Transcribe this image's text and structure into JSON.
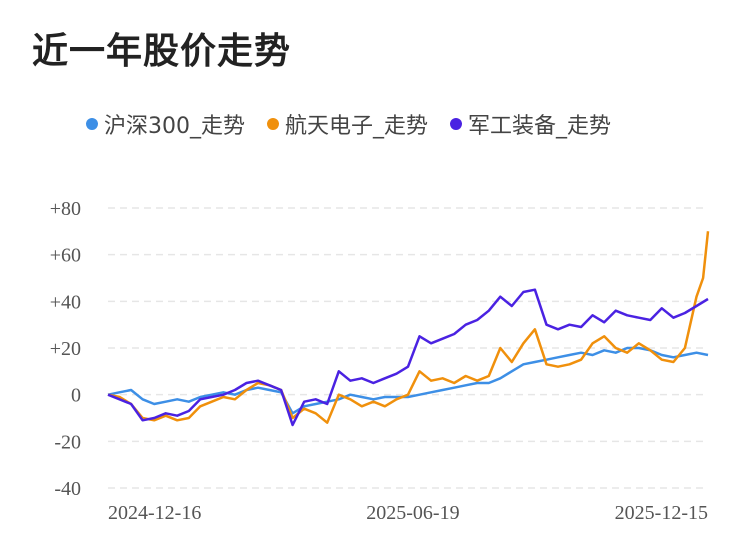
{
  "title": "近一年股价走势",
  "chart_data": {
    "type": "line",
    "title": "近一年股价走势",
    "xlabel": "",
    "ylabel": "",
    "x_ticks": [
      "2024-12-16",
      "2025-06-19",
      "2025-12-15"
    ],
    "x_range": [
      "2024-12-16",
      "2025-12-15"
    ],
    "y_ticks": [
      "+80",
      "+60",
      "+40",
      "+20",
      "0",
      "-20",
      "-40"
    ],
    "ylim": [
      -40,
      80
    ],
    "grid": true,
    "legend_position": "top-left",
    "series": [
      {
        "name": "沪深300_走势",
        "color": "#3d8fe6",
        "points": [
          [
            "2024-12-16",
            0
          ],
          [
            "2024-12-23",
            1
          ],
          [
            "2024-12-30",
            2
          ],
          [
            "2025-01-06",
            -2
          ],
          [
            "2025-01-13",
            -4
          ],
          [
            "2025-01-20",
            -3
          ],
          [
            "2025-01-27",
            -2
          ],
          [
            "2025-02-03",
            -3
          ],
          [
            "2025-02-10",
            -1
          ],
          [
            "2025-02-17",
            0
          ],
          [
            "2025-02-24",
            1
          ],
          [
            "2025-03-03",
            0
          ],
          [
            "2025-03-10",
            2
          ],
          [
            "2025-03-17",
            3
          ],
          [
            "2025-03-24",
            2
          ],
          [
            "2025-03-31",
            1
          ],
          [
            "2025-04-07",
            -8
          ],
          [
            "2025-04-14",
            -5
          ],
          [
            "2025-04-21",
            -4
          ],
          [
            "2025-04-28",
            -3
          ],
          [
            "2025-05-05",
            -2
          ],
          [
            "2025-05-12",
            0
          ],
          [
            "2025-05-19",
            -1
          ],
          [
            "2025-05-26",
            -2
          ],
          [
            "2025-06-02",
            -1
          ],
          [
            "2025-06-09",
            -1
          ],
          [
            "2025-06-16",
            -1
          ],
          [
            "2025-06-23",
            0
          ],
          [
            "2025-06-30",
            1
          ],
          [
            "2025-07-07",
            2
          ],
          [
            "2025-07-14",
            3
          ],
          [
            "2025-07-21",
            4
          ],
          [
            "2025-07-28",
            5
          ],
          [
            "2025-08-04",
            5
          ],
          [
            "2025-08-11",
            7
          ],
          [
            "2025-08-18",
            10
          ],
          [
            "2025-08-25",
            13
          ],
          [
            "2025-09-01",
            14
          ],
          [
            "2025-09-08",
            15
          ],
          [
            "2025-09-15",
            16
          ],
          [
            "2025-09-22",
            17
          ],
          [
            "2025-09-29",
            18
          ],
          [
            "2025-10-06",
            17
          ],
          [
            "2025-10-13",
            19
          ],
          [
            "2025-10-20",
            18
          ],
          [
            "2025-10-27",
            20
          ],
          [
            "2025-11-03",
            20
          ],
          [
            "2025-11-10",
            19
          ],
          [
            "2025-11-17",
            17
          ],
          [
            "2025-11-24",
            16
          ],
          [
            "2025-12-01",
            17
          ],
          [
            "2025-12-08",
            18
          ],
          [
            "2025-12-15",
            17
          ]
        ]
      },
      {
        "name": "航天电子_走势",
        "color": "#f0900c",
        "points": [
          [
            "2024-12-16",
            0
          ],
          [
            "2024-12-23",
            -1
          ],
          [
            "2024-12-30",
            -4
          ],
          [
            "2025-01-06",
            -10
          ],
          [
            "2025-01-13",
            -11
          ],
          [
            "2025-01-20",
            -9
          ],
          [
            "2025-01-27",
            -11
          ],
          [
            "2025-02-03",
            -10
          ],
          [
            "2025-02-10",
            -5
          ],
          [
            "2025-02-17",
            -3
          ],
          [
            "2025-02-24",
            -1
          ],
          [
            "2025-03-03",
            -2
          ],
          [
            "2025-03-10",
            2
          ],
          [
            "2025-03-17",
            5
          ],
          [
            "2025-03-24",
            4
          ],
          [
            "2025-03-31",
            2
          ],
          [
            "2025-04-07",
            -10
          ],
          [
            "2025-04-14",
            -6
          ],
          [
            "2025-04-21",
            -8
          ],
          [
            "2025-04-28",
            -12
          ],
          [
            "2025-05-05",
            0
          ],
          [
            "2025-05-12",
            -2
          ],
          [
            "2025-05-19",
            -5
          ],
          [
            "2025-05-26",
            -3
          ],
          [
            "2025-06-02",
            -5
          ],
          [
            "2025-06-09",
            -2
          ],
          [
            "2025-06-16",
            0
          ],
          [
            "2025-06-23",
            10
          ],
          [
            "2025-06-30",
            6
          ],
          [
            "2025-07-07",
            7
          ],
          [
            "2025-07-14",
            5
          ],
          [
            "2025-07-21",
            8
          ],
          [
            "2025-07-28",
            6
          ],
          [
            "2025-08-04",
            8
          ],
          [
            "2025-08-11",
            20
          ],
          [
            "2025-08-18",
            14
          ],
          [
            "2025-08-25",
            22
          ],
          [
            "2025-09-01",
            28
          ],
          [
            "2025-09-08",
            13
          ],
          [
            "2025-09-15",
            12
          ],
          [
            "2025-09-22",
            13
          ],
          [
            "2025-09-29",
            15
          ],
          [
            "2025-10-06",
            22
          ],
          [
            "2025-10-13",
            25
          ],
          [
            "2025-10-20",
            20
          ],
          [
            "2025-10-27",
            18
          ],
          [
            "2025-11-03",
            22
          ],
          [
            "2025-11-10",
            19
          ],
          [
            "2025-11-17",
            15
          ],
          [
            "2025-11-24",
            14
          ],
          [
            "2025-12-01",
            20
          ],
          [
            "2025-12-08",
            42
          ],
          [
            "2025-12-12",
            50
          ],
          [
            "2025-12-15",
            70
          ]
        ]
      },
      {
        "name": "军工装备_走势",
        "color": "#4a22e2",
        "points": [
          [
            "2024-12-16",
            0
          ],
          [
            "2024-12-23",
            -2
          ],
          [
            "2024-12-30",
            -4
          ],
          [
            "2025-01-06",
            -11
          ],
          [
            "2025-01-13",
            -10
          ],
          [
            "2025-01-20",
            -8
          ],
          [
            "2025-01-27",
            -9
          ],
          [
            "2025-02-03",
            -7
          ],
          [
            "2025-02-10",
            -2
          ],
          [
            "2025-02-17",
            -1
          ],
          [
            "2025-02-24",
            0
          ],
          [
            "2025-03-03",
            2
          ],
          [
            "2025-03-10",
            5
          ],
          [
            "2025-03-17",
            6
          ],
          [
            "2025-03-24",
            4
          ],
          [
            "2025-03-31",
            2
          ],
          [
            "2025-04-07",
            -13
          ],
          [
            "2025-04-14",
            -3
          ],
          [
            "2025-04-21",
            -2
          ],
          [
            "2025-04-28",
            -4
          ],
          [
            "2025-05-05",
            10
          ],
          [
            "2025-05-12",
            6
          ],
          [
            "2025-05-19",
            7
          ],
          [
            "2025-05-26",
            5
          ],
          [
            "2025-06-02",
            7
          ],
          [
            "2025-06-09",
            9
          ],
          [
            "2025-06-16",
            12
          ],
          [
            "2025-06-23",
            25
          ],
          [
            "2025-06-30",
            22
          ],
          [
            "2025-07-07",
            24
          ],
          [
            "2025-07-14",
            26
          ],
          [
            "2025-07-21",
            30
          ],
          [
            "2025-07-28",
            32
          ],
          [
            "2025-08-04",
            36
          ],
          [
            "2025-08-11",
            42
          ],
          [
            "2025-08-18",
            38
          ],
          [
            "2025-08-25",
            44
          ],
          [
            "2025-09-01",
            45
          ],
          [
            "2025-09-08",
            30
          ],
          [
            "2025-09-15",
            28
          ],
          [
            "2025-09-22",
            30
          ],
          [
            "2025-09-29",
            29
          ],
          [
            "2025-10-06",
            34
          ],
          [
            "2025-10-13",
            31
          ],
          [
            "2025-10-20",
            36
          ],
          [
            "2025-10-27",
            34
          ],
          [
            "2025-11-03",
            33
          ],
          [
            "2025-11-10",
            32
          ],
          [
            "2025-11-17",
            37
          ],
          [
            "2025-11-24",
            33
          ],
          [
            "2025-12-01",
            35
          ],
          [
            "2025-12-08",
            38
          ],
          [
            "2025-12-15",
            41
          ]
        ]
      }
    ]
  }
}
